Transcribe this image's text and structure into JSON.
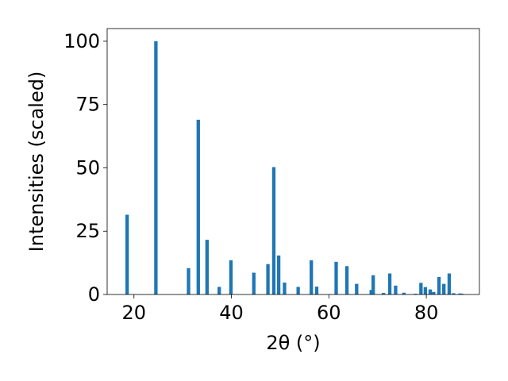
{
  "chart_data": {
    "type": "bar",
    "title": "",
    "xlabel": "2θ (°)",
    "ylabel": "Intensities (scaled)",
    "xlim": [
      14.5,
      90.9
    ],
    "ylim": [
      0,
      105
    ],
    "grid": false,
    "bar_color": "#1f77b4",
    "xticks": [
      20,
      40,
      60,
      80
    ],
    "yticks": [
      0,
      25,
      50,
      75,
      100
    ],
    "x": [
      18.6,
      24.5,
      31.2,
      33.2,
      35.0,
      37.5,
      39.9,
      44.6,
      47.5,
      48.7,
      49.7,
      50.9,
      53.7,
      56.4,
      57.5,
      61.5,
      63.7,
      65.7,
      68.7,
      69.1,
      71.2,
      72.5,
      73.7,
      75.4,
      77.8,
      78.9,
      79.8,
      80.8,
      81.5,
      82.6,
      83.6,
      84.7,
      85.6,
      86.9,
      87.3
    ],
    "values": [
      31.5,
      100,
      10.4,
      69,
      21.6,
      3,
      13.5,
      8.6,
      12,
      50.3,
      15.4,
      4.7,
      3,
      13.5,
      3.1,
      12.9,
      11.2,
      4.2,
      1.8,
      7.6,
      0.6,
      8.3,
      3.5,
      0.7,
      0.3,
      4.6,
      2.9,
      2,
      1,
      6.9,
      4.2,
      8.3,
      0.5,
      0.4,
      0.3
    ]
  }
}
